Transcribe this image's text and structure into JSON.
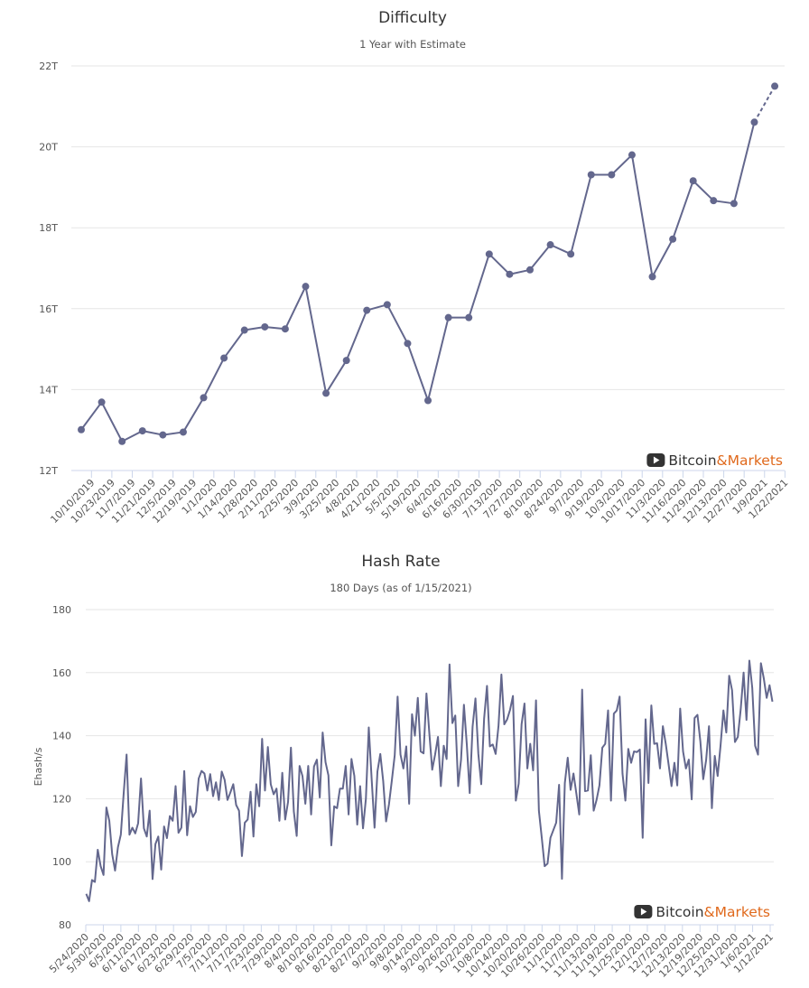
{
  "colors": {
    "series": "#63678d",
    "grid": "#e6e6e6",
    "axis": "#ccd6eb",
    "brand_dark": "#333333",
    "brand_orange": "#e0691c"
  },
  "watermark": {
    "part1": "Bitcoin",
    "part2": "&Markets",
    "icon": "play-logo-icon"
  },
  "chart_data": [
    {
      "type": "line",
      "title": "Difficulty",
      "subtitle": "1 Year with Estimate",
      "xlabel": "",
      "ylabel": "",
      "ylim": [
        12,
        22
      ],
      "yticks": [
        12,
        14,
        16,
        18,
        20,
        22
      ],
      "ytick_labels": [
        "12T",
        "14T",
        "16T",
        "18T",
        "20T",
        "22T"
      ],
      "grid": true,
      "legend": "none",
      "categories": [
        "10/10/2019",
        "10/23/2019",
        "11/7/2019",
        "11/21/2019",
        "12/5/2019",
        "12/19/2019",
        "1/1/2020",
        "1/14/2020",
        "1/28/2020",
        "2/11/2020",
        "2/25/2020",
        "3/9/2020",
        "3/25/2020",
        "4/8/2020",
        "4/21/2020",
        "5/5/2020",
        "5/19/2020",
        "6/4/2020",
        "6/16/2020",
        "6/30/2020",
        "7/13/2020",
        "7/27/2020",
        "8/10/2020",
        "8/24/2020",
        "9/7/2020",
        "9/19/2020",
        "10/3/2020",
        "10/17/2020",
        "11/3/2020",
        "11/16/2020",
        "11/29/2020",
        "12/13/2020",
        "12/27/2020",
        "1/9/2021",
        "1/22/2021"
      ],
      "values": [
        13.01,
        13.69,
        12.72,
        12.98,
        12.88,
        12.95,
        13.8,
        14.78,
        15.47,
        15.55,
        15.5,
        16.55,
        13.91,
        14.72,
        15.96,
        16.1,
        15.14,
        13.73,
        15.78,
        15.78,
        17.35,
        16.85,
        16.96,
        17.58,
        17.35,
        19.31,
        19.31,
        19.8,
        16.79,
        17.72,
        19.16,
        18.67,
        18.6,
        20.61,
        21.5
      ],
      "estimate_from_index": 33
    },
    {
      "type": "line",
      "title": "Hash Rate",
      "subtitle": "180 Days (as of 1/15/2021)",
      "xlabel": "",
      "ylabel": "Ehash/s",
      "ylim": [
        80,
        180
      ],
      "yticks": [
        80,
        100,
        120,
        140,
        160,
        180
      ],
      "grid": true,
      "legend": "none",
      "x_tick_labels": [
        "5/24/2020",
        "5/30/2020",
        "6/5/2020",
        "6/11/2020",
        "6/17/2020",
        "6/23/2020",
        "6/29/2020",
        "7/5/2020",
        "7/11/2020",
        "7/17/2020",
        "7/23/2020",
        "7/29/2020",
        "8/4/2020",
        "8/10/2020",
        "8/16/2020",
        "8/21/2020",
        "8/27/2020",
        "9/2/2020",
        "9/8/2020",
        "9/14/2020",
        "9/20/2020",
        "9/26/2020",
        "10/2/2020",
        "10/8/2020",
        "10/14/2020",
        "10/20/2020",
        "10/26/2020",
        "11/1/2020",
        "11/7/2020",
        "11/13/2020",
        "11/19/2020",
        "11/25/2020",
        "12/1/2020",
        "12/7/2020",
        "12/13/2020",
        "12/19/2020",
        "12/25/2020",
        "12/31/2020",
        "1/6/2021",
        "1/12/2021"
      ],
      "values": [
        89.8,
        87.5,
        94.2,
        93.6,
        103.8,
        98.6,
        95.8,
        117.2,
        113.0,
        102.4,
        97.2,
        104.6,
        108.6,
        121.8,
        134.0,
        108.6,
        110.8,
        109.0,
        112.2,
        126.4,
        110.6,
        108.0,
        116.2,
        94.5,
        105.6,
        108.0,
        97.5,
        111.2,
        107.5,
        114.5,
        113.0,
        124.0,
        109.2,
        110.8,
        128.8,
        108.4,
        117.6,
        114.2,
        115.8,
        126.4,
        128.8,
        128.0,
        122.6,
        127.8,
        120.8,
        125.2,
        119.6,
        128.6,
        126.0,
        119.6,
        122.0,
        124.6,
        118.0,
        116.2,
        101.8,
        112.4,
        113.4,
        122.2,
        108.0,
        124.6,
        117.6,
        139.0,
        122.6,
        136.4,
        124.6,
        121.4,
        123.2,
        113.0,
        128.2,
        113.4,
        119.0,
        136.2,
        116.0,
        108.2,
        130.4,
        127.2,
        118.4,
        130.4,
        115.0,
        130.2,
        132.4,
        120.4,
        141.0,
        131.6,
        127.4,
        105.2,
        117.6,
        117.0,
        123.2,
        123.2,
        130.4,
        115.0,
        132.6,
        127.2,
        111.8,
        124.0,
        110.6,
        120.0,
        142.6,
        126.2,
        110.8,
        128.6,
        134.2,
        125.6,
        112.8,
        118.2,
        125.8,
        133.8,
        152.4,
        134.0,
        129.6,
        136.6,
        118.4,
        146.8,
        140.0,
        152.0,
        135.0,
        134.4,
        153.4,
        140.8,
        129.2,
        134.0,
        139.6,
        124.0,
        136.8,
        132.6,
        162.6,
        144.0,
        146.4,
        124.0,
        132.4,
        149.8,
        137.2,
        121.8,
        142.8,
        151.8,
        134.2,
        124.6,
        145.4,
        155.8,
        136.6,
        137.2,
        134.2,
        143.2,
        159.4,
        143.6,
        145.2,
        148.2,
        152.6,
        119.4,
        124.8,
        143.6,
        150.2,
        129.6,
        137.4,
        129.0,
        151.2,
        116.2,
        107.6,
        98.6,
        99.4,
        107.6,
        110.0,
        112.4,
        124.4,
        94.6,
        125.0,
        133.0,
        122.8,
        128.0,
        121.6,
        115.0,
        154.6,
        122.4,
        122.6,
        133.8,
        116.2,
        119.6,
        124.2,
        136.2,
        137.4,
        148.0,
        119.4,
        147.0,
        148.0,
        152.4,
        128.0,
        119.4,
        135.8,
        131.4,
        135.0,
        134.8,
        135.6,
        107.6,
        145.2,
        125.0,
        149.6,
        137.4,
        137.6,
        129.6,
        143.0,
        137.4,
        130.8,
        124.0,
        131.4,
        124.2,
        148.6,
        135.0,
        129.6,
        132.4,
        119.8,
        145.6,
        146.6,
        138.2,
        126.2,
        132.2,
        143.0,
        117.0,
        133.6,
        127.2,
        136.8,
        148.0,
        141.0,
        159.0,
        154.4,
        138.0,
        139.6,
        148.4,
        160.0,
        145.0,
        163.8,
        155.2,
        136.8,
        134.0,
        163.0,
        158.2,
        152.0,
        156.0,
        150.8
      ]
    }
  ]
}
